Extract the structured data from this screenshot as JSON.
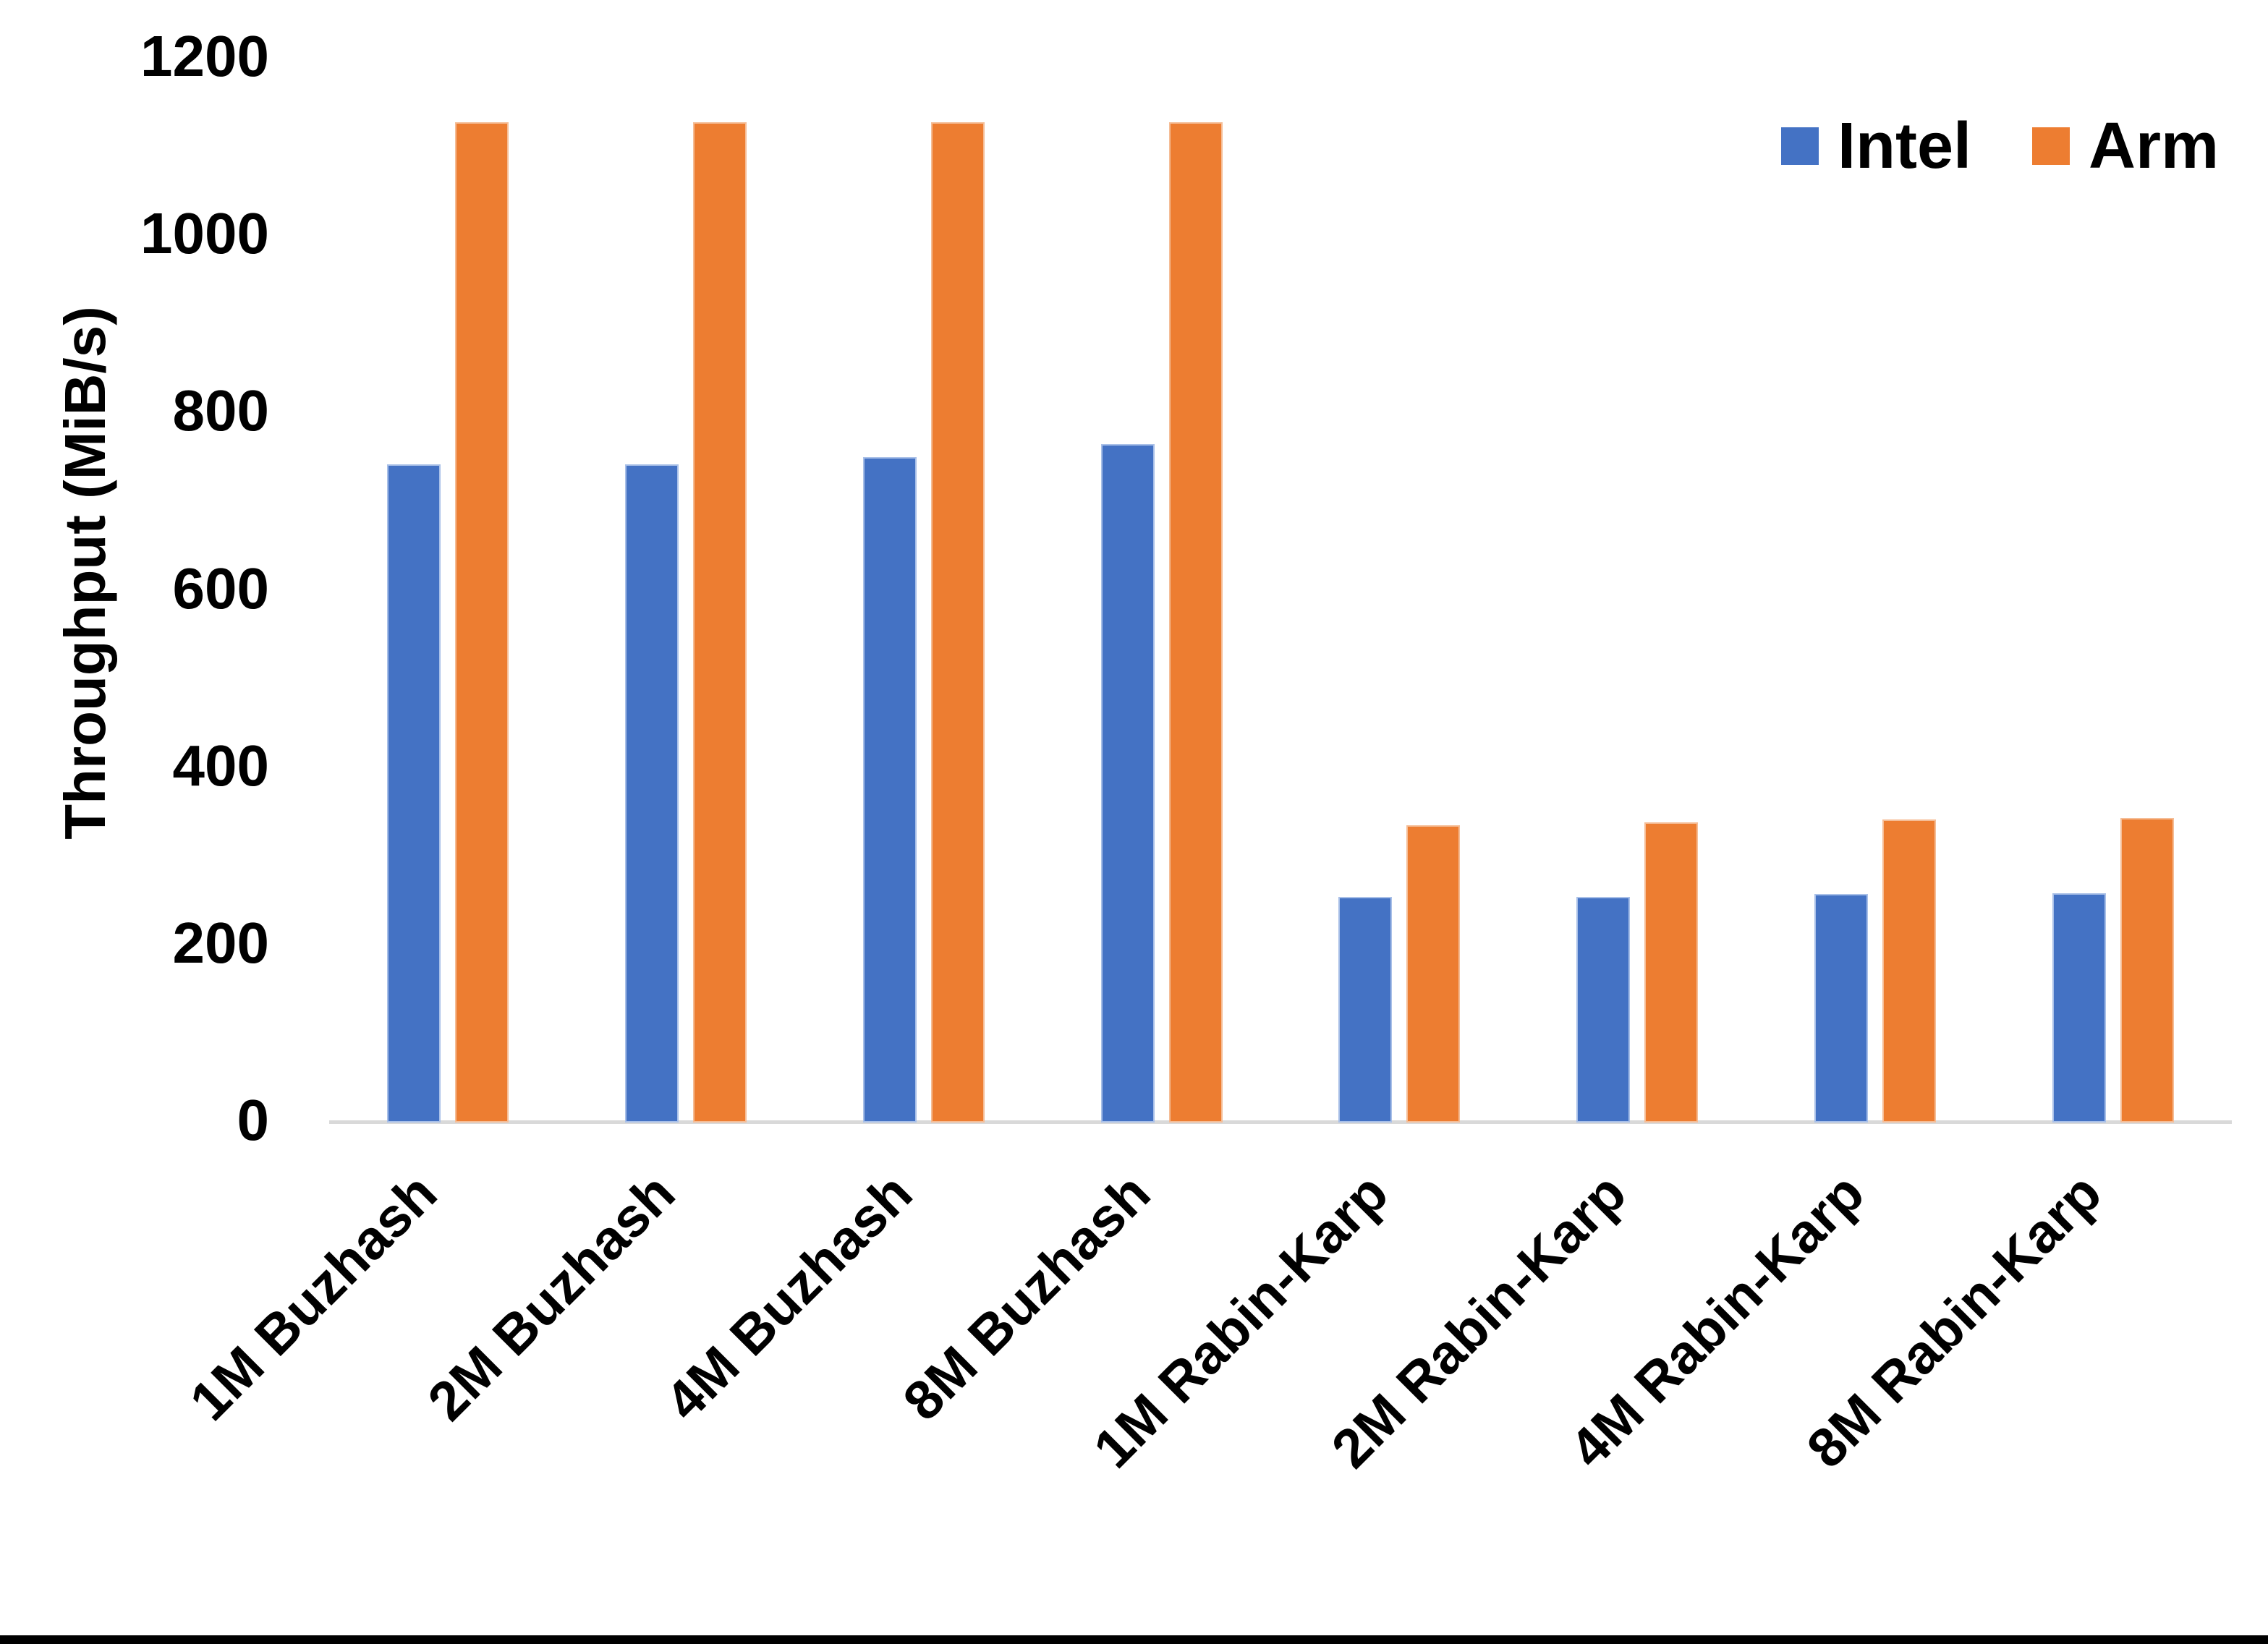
{
  "chart_data": {
    "type": "bar",
    "title": "",
    "xlabel": "",
    "ylabel": "Throughput (MiB/s)",
    "ylim": [
      0,
      1200
    ],
    "ytick_step": 200,
    "yticks": [
      0,
      200,
      400,
      600,
      800,
      1000,
      1200
    ],
    "grid": false,
    "legend_position": "top-right",
    "categories": [
      "1M Buzhash",
      "2M Buzhash",
      "4M Buzhash",
      "8M Buzhash",
      "1M Rabin-Karp",
      "2M Rabin-Karp",
      "4M Rabin-Karp",
      "8M Rabin-Karp"
    ],
    "series": [
      {
        "name": "Intel",
        "color": "#4472C4",
        "border_color": "#A9C0E8",
        "values": [
          740,
          740,
          748,
          763,
          252,
          252,
          255,
          256
        ]
      },
      {
        "name": "Arm",
        "color": "#ED7D31",
        "border_color": "#F5BD96",
        "values": [
          1126,
          1126,
          1126,
          1126,
          333,
          336,
          339,
          341
        ]
      }
    ]
  },
  "colors": {
    "background": "#FFFFFF",
    "axis_line": "#D9D9D9",
    "text": "#000000",
    "bottom_border": "#000000"
  }
}
